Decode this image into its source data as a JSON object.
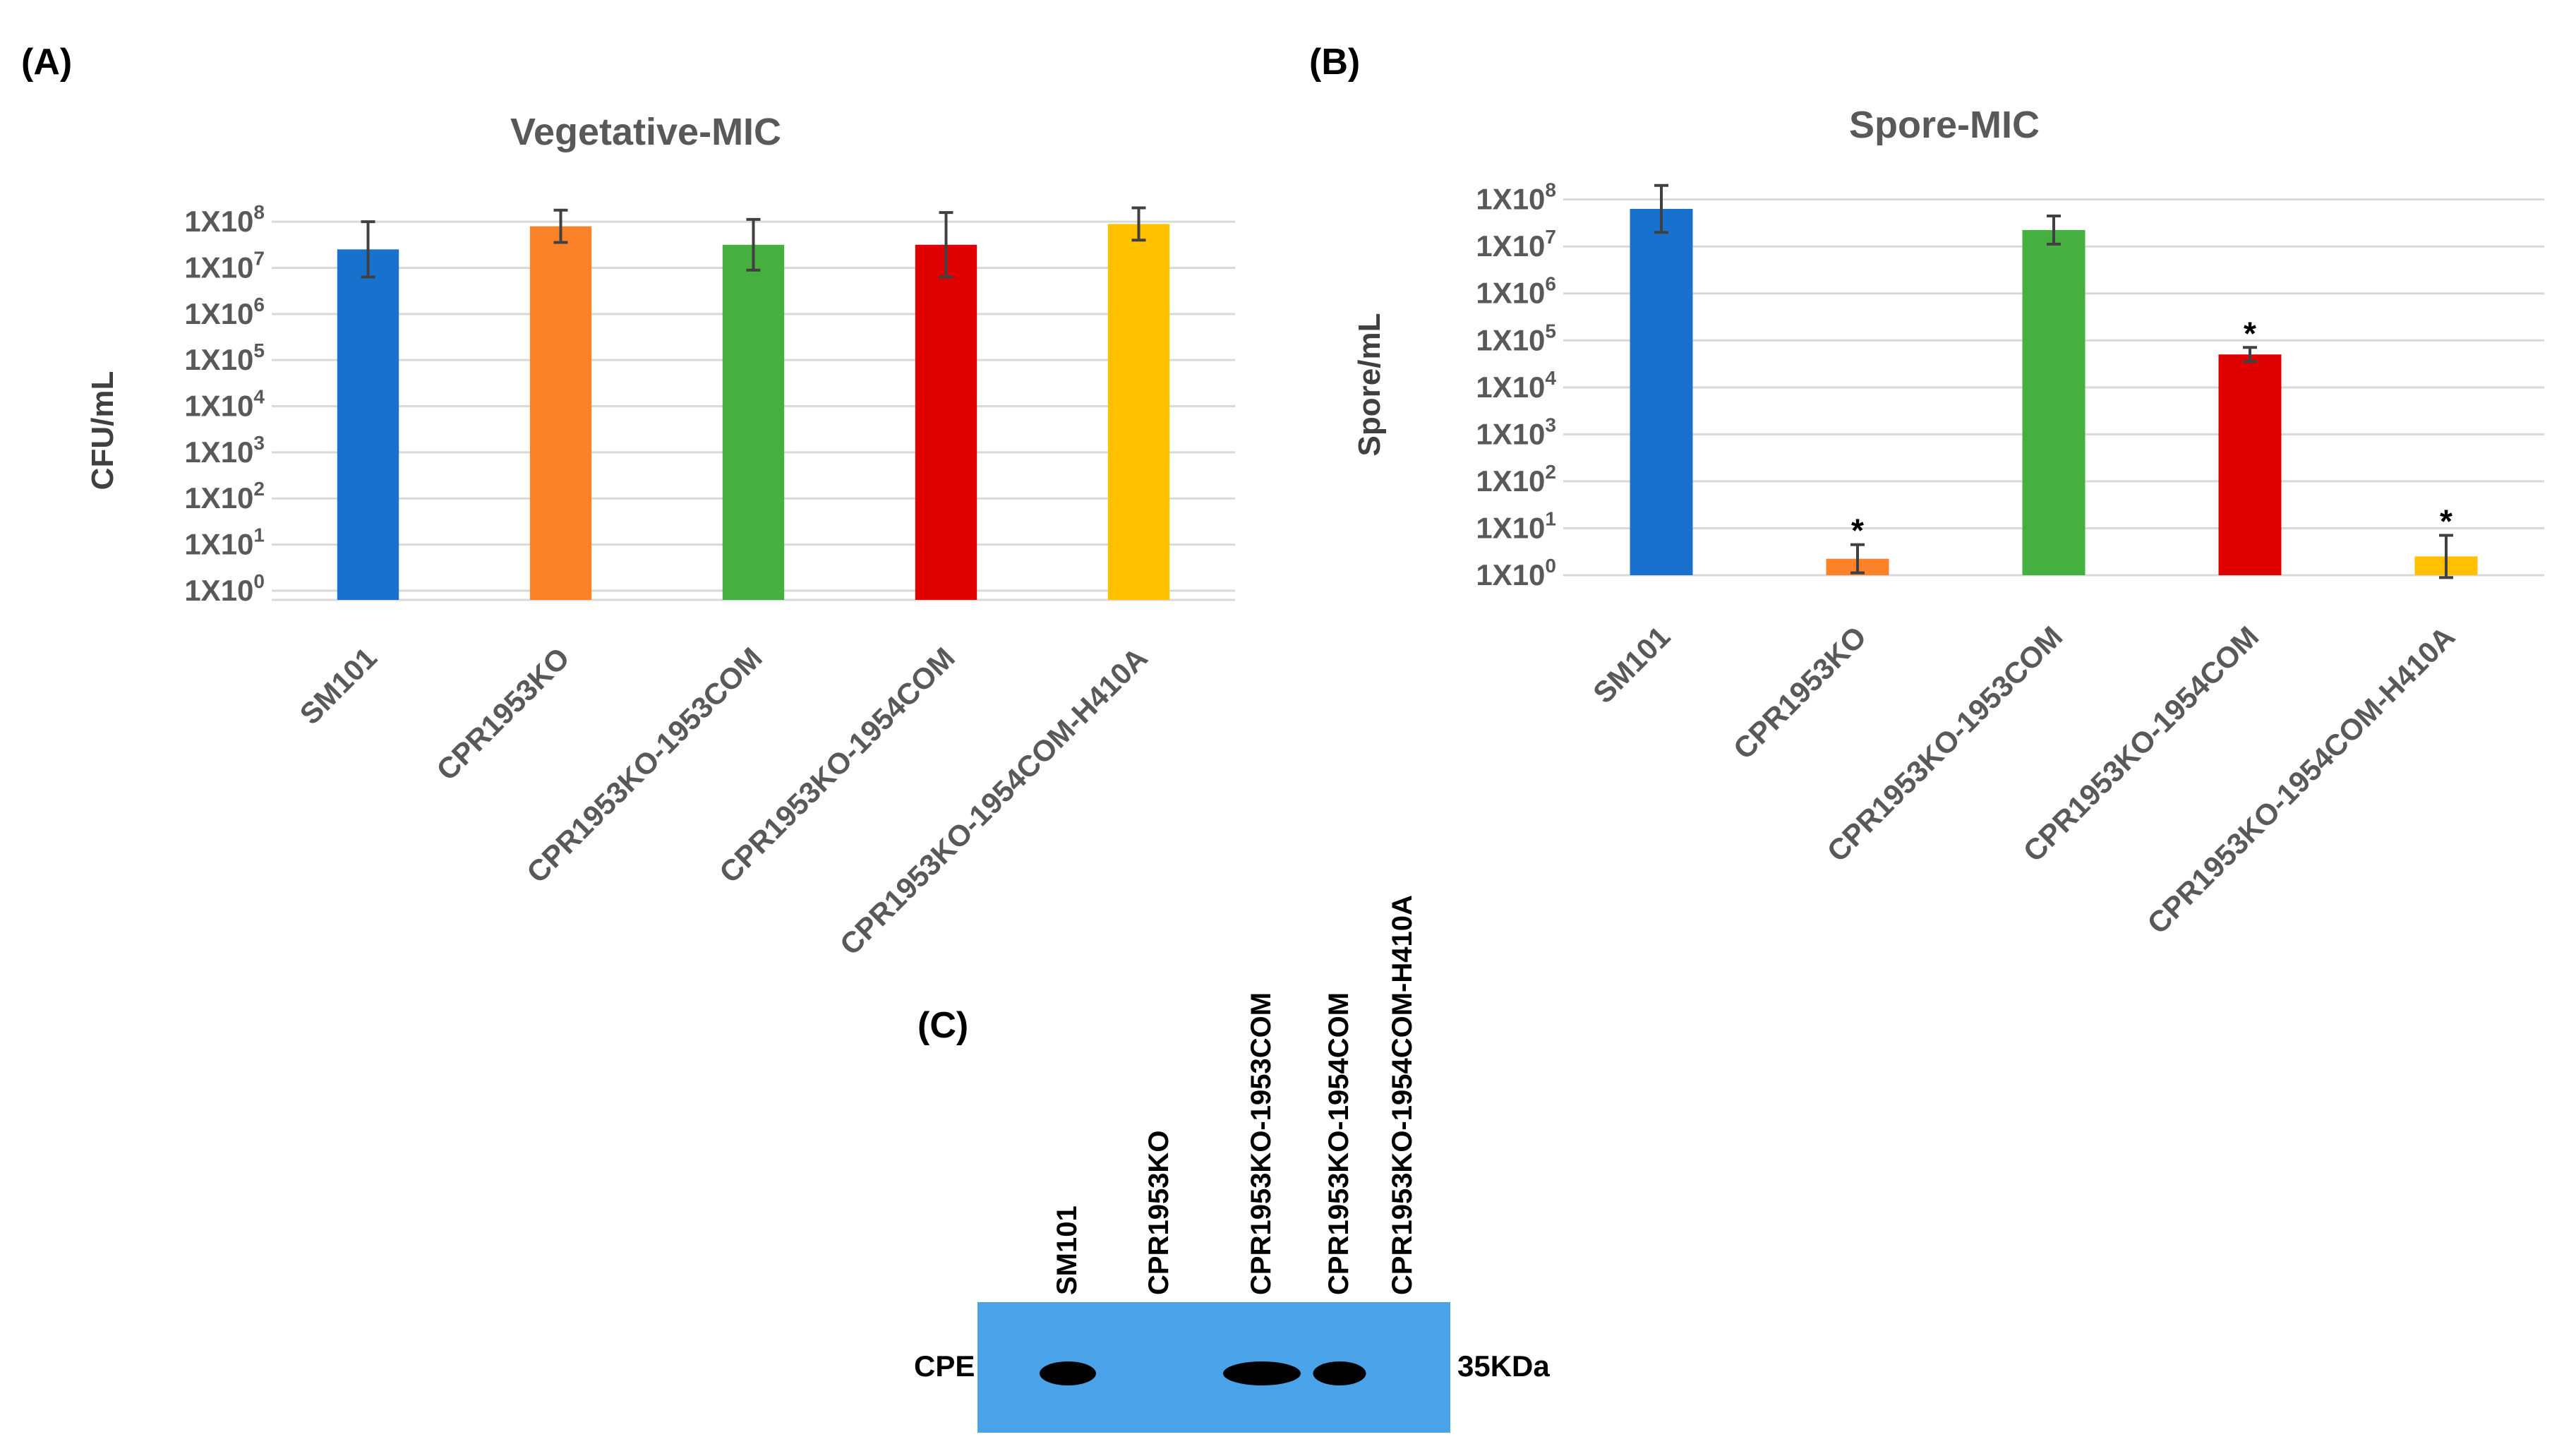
{
  "panel_labels": {
    "a": "(A)",
    "b": "(B)",
    "c": "(C)"
  },
  "colors": {
    "SM101": "#1872cd",
    "CPR1953KO": "#fb8228",
    "CPR1953KO-1953COM": "#45b03f",
    "CPR1953KO-1954COM": "#e00000",
    "CPR1953KO-1954COM-H410A": "#ffc000",
    "blot_background": "#4aa3e8",
    "band": "#000000"
  },
  "chart_data": [
    {
      "type": "bar",
      "title": "Vegetative-MIC",
      "xlabel": "",
      "ylabel": "CFU/mL",
      "yscale": "log",
      "ylim_log10": [
        -0.2,
        8.4
      ],
      "ytick_log10": [
        0,
        1,
        2,
        3,
        4,
        5,
        6,
        7,
        8
      ],
      "ytick_labels": [
        {
          "base": "1X10",
          "exp": "0"
        },
        {
          "base": "1X10",
          "exp": "1"
        },
        {
          "base": "1X10",
          "exp": "2"
        },
        {
          "base": "1X10",
          "exp": "3"
        },
        {
          "base": "1X10",
          "exp": "4"
        },
        {
          "base": "1X10",
          "exp": "5"
        },
        {
          "base": "1X10",
          "exp": "6"
        },
        {
          "base": "1X10",
          "exp": "7"
        },
        {
          "base": "1X10",
          "exp": "8"
        }
      ],
      "categories": [
        "SM101",
        "CPR1953KO",
        "CPR1953KO-1953COM",
        "CPR1953KO-1954COM",
        "CPR1953KO-1954COM-H410A"
      ],
      "values_log10": [
        7.4,
        7.9,
        7.5,
        7.5,
        7.95
      ],
      "error_log10": [
        0.6,
        0.35,
        0.55,
        0.7,
        0.35
      ],
      "annotations": [
        "",
        "",
        "",
        "",
        ""
      ],
      "grid": true
    },
    {
      "type": "bar",
      "title": "Spore-MIC",
      "xlabel": "",
      "ylabel": "Spore/mL",
      "yscale": "log",
      "ylim_log10": [
        0,
        8.1
      ],
      "ytick_log10": [
        0,
        1,
        2,
        3,
        4,
        5,
        6,
        7,
        8
      ],
      "ytick_labels": [
        {
          "base": "1X10",
          "exp": "0"
        },
        {
          "base": "1X10",
          "exp": "1"
        },
        {
          "base": "1X10",
          "exp": "2"
        },
        {
          "base": "1X10",
          "exp": "3"
        },
        {
          "base": "1X10",
          "exp": "4"
        },
        {
          "base": "1X10",
          "exp": "5"
        },
        {
          "base": "1X10",
          "exp": "6"
        },
        {
          "base": "1X10",
          "exp": "7"
        },
        {
          "base": "1X10",
          "exp": "8"
        }
      ],
      "categories": [
        "SM101",
        "CPR1953KO",
        "CPR1953KO-1953COM",
        "CPR1953KO-1954COM",
        "CPR1953KO-1954COM-H410A"
      ],
      "values_log10": [
        7.8,
        0.35,
        7.35,
        4.7,
        0.4
      ],
      "error_log10": [
        0.5,
        0.3,
        0.3,
        0.15,
        0.45
      ],
      "annotations": [
        "",
        "*",
        "",
        "*",
        "*"
      ],
      "grid": true
    }
  ],
  "blot": {
    "lanes": [
      "SM101",
      "CPR1953KO",
      "CPR1953KO-1953COM",
      "CPR1953KO-1954COM",
      "CPR1953KO-1954COM-H410A"
    ],
    "band_present": [
      true,
      false,
      true,
      true,
      false
    ],
    "row_label": "CPE",
    "size_label": "35KDa"
  }
}
